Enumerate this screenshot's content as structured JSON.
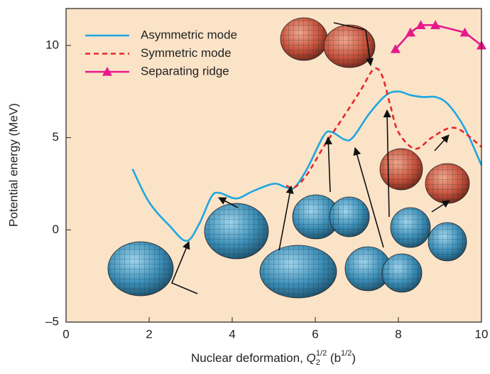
{
  "chart_data": {
    "type": "line",
    "xlabel": {
      "text": "Nuclear deformation, ",
      "var": "Q",
      "sub": "2",
      "sup": "1/2",
      "unit_open": " (b",
      "unit_sup": "1/2",
      "unit_close": ")"
    },
    "ylabel": "Potential energy (MeV)",
    "xlim": [
      0,
      10
    ],
    "ylim": [
      -5,
      12
    ],
    "xticks": [
      0,
      2,
      4,
      6,
      8,
      10
    ],
    "yticks": [
      {
        "value": -5,
        "label": "–5"
      },
      0,
      5,
      10
    ],
    "background": "#fbe3c8",
    "legend": "upper left",
    "series": [
      {
        "name": "Asymmetric mode",
        "color": "#1ea7e1",
        "style": "solid",
        "marker": false,
        "x": [
          1.6,
          2.0,
          2.5,
          2.9,
          3.2,
          3.5,
          3.7,
          4.1,
          4.5,
          5.0,
          5.3,
          5.5,
          5.8,
          6.2,
          6.4,
          6.7,
          6.9,
          7.3,
          7.7,
          8.0,
          8.3,
          8.6,
          8.9,
          9.2,
          9.6,
          10.0
        ],
        "values": [
          3.3,
          1.5,
          0.2,
          -0.6,
          0.3,
          1.8,
          2.0,
          1.7,
          2.1,
          2.5,
          2.3,
          2.3,
          3.3,
          5.1,
          5.3,
          4.9,
          5.0,
          6.3,
          7.3,
          7.5,
          7.3,
          7.2,
          7.2,
          6.8,
          5.5,
          3.5
        ]
      },
      {
        "name": "Symmetric mode",
        "color": "#e8262c",
        "style": "dashed",
        "marker": false,
        "x": [
          5.3,
          5.5,
          5.8,
          6.2,
          6.7,
          7.1,
          7.4,
          7.6,
          7.8,
          8.0,
          8.4,
          8.8,
          9.2,
          9.5,
          10.0
        ],
        "values": [
          2.4,
          2.3,
          3.0,
          4.5,
          6.2,
          7.6,
          8.7,
          8.4,
          6.8,
          5.3,
          4.4,
          5.0,
          5.5,
          5.4,
          4.5
        ]
      },
      {
        "name": "Separating ridge",
        "color": "#e6198a",
        "style": "solid",
        "marker": true,
        "x": [
          7.93,
          8.29,
          8.54,
          8.89,
          9.6,
          10.0
        ],
        "values": [
          9.8,
          10.7,
          11.1,
          11.1,
          10.7,
          10.0
        ]
      }
    ]
  }
}
